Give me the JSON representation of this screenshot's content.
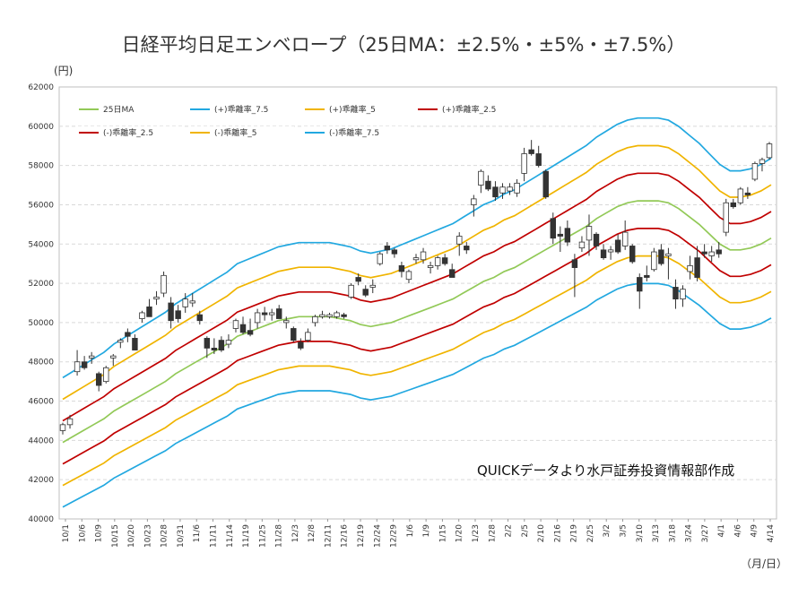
{
  "title": "日経平均日足エンベロープ（25日MA：±2.5%・±5%・±7.5%）",
  "y_unit": "(円)",
  "x_unit": "（月/日）",
  "source_note": "QUICKデータより水戸証券投資情報部作成",
  "colors": {
    "ma": "#92c957",
    "band_2_5": "#c00000",
    "band_5": "#f0b400",
    "band_7_5": "#22a8e0",
    "candle_down": "#333333",
    "candle_up": "#ffffff",
    "grid": "#d9d9d9"
  },
  "chart_data": {
    "type": "line",
    "ylim": [
      40000,
      62000
    ],
    "yticks": [
      "40000",
      "42000",
      "44000",
      "46000",
      "48000",
      "50000",
      "52000",
      "54000",
      "56000",
      "58000",
      "60000",
      "62000"
    ],
    "xticks": [
      "10/1",
      "10/6",
      "10/9",
      "10/15",
      "10/20",
      "10/23",
      "10/28",
      "10/31",
      "11/6",
      "11/11",
      "11/14",
      "11/19",
      "11/25",
      "11/28",
      "12/3",
      "12/8",
      "12/11",
      "12/16",
      "12/19",
      "12/24",
      "12/29",
      "1/6",
      "1/9",
      "1/15",
      "1/20",
      "1/23",
      "1/28",
      "2/2",
      "2/5",
      "2/10",
      "2/16",
      "2/19",
      "2/25",
      "3/2",
      "3/5",
      "3/10",
      "3/13",
      "3/18",
      "3/24",
      "3/27",
      "4/1",
      "4/6",
      "4/9",
      "4/14"
    ],
    "legend": [
      {
        "label": "25日MA",
        "color": "#92c957"
      },
      {
        "label": "(+)乖離率_7.5",
        "color": "#22a8e0"
      },
      {
        "label": "(+)乖離率_5",
        "color": "#f0b400"
      },
      {
        "label": "(+)乖離率_2.5",
        "color": "#c00000"
      },
      {
        "label": "(-)乖離率_2.5",
        "color": "#c00000"
      },
      {
        "label": "(-)乖離率_5",
        "color": "#f0b400"
      },
      {
        "label": "(-)乖離率_7.5",
        "color": "#22a8e0"
      }
    ],
    "ma_25": [
      43900,
      44200,
      44500,
      44800,
      45100,
      45500,
      45800,
      46100,
      46400,
      46700,
      47000,
      47400,
      47700,
      48000,
      48300,
      48600,
      48900,
      49300,
      49500,
      49700,
      49900,
      50100,
      50200,
      50300,
      50300,
      50300,
      50300,
      50200,
      50100,
      49900,
      49800,
      49900,
      50000,
      50200,
      50400,
      50600,
      50800,
      51000,
      51200,
      51500,
      51800,
      52100,
      52300,
      52600,
      52800,
      53100,
      53400,
      53700,
      54000,
      54300,
      54600,
      54900,
      55300,
      55600,
      55900,
      56100,
      56200,
      56200,
      56200,
      56100,
      55800,
      55400,
      55000,
      54500,
      54000,
      53700,
      53700,
      53800,
      54000,
      54300
    ],
    "series_note": "Envelope bands = 25日MA × (1 ± 2.5% / 5% / 7.5%)",
    "candles": [
      {
        "date": "10/1",
        "o": 44500,
        "h": 44900,
        "l": 44300,
        "c": 44800
      },
      {
        "date": "10/3",
        "o": 44800,
        "h": 45300,
        "l": 44600,
        "c": 45100
      },
      {
        "date": "10/6",
        "o": 47500,
        "h": 48600,
        "l": 47300,
        "c": 48000
      },
      {
        "date": "10/8",
        "o": 48000,
        "h": 48300,
        "l": 47600,
        "c": 47700
      },
      {
        "date": "10/9",
        "o": 48200,
        "h": 48500,
        "l": 47900,
        "c": 48300
      },
      {
        "date": "10/14",
        "o": 47400,
        "h": 47500,
        "l": 46500,
        "c": 46800
      },
      {
        "date": "10/15",
        "o": 47000,
        "h": 47800,
        "l": 46900,
        "c": 47700
      },
      {
        "date": "10/16",
        "o": 48200,
        "h": 48400,
        "l": 47800,
        "c": 48300
      },
      {
        "date": "10/20",
        "o": 49000,
        "h": 49200,
        "l": 48700,
        "c": 49100
      },
      {
        "date": "10/22",
        "o": 49500,
        "h": 49700,
        "l": 49000,
        "c": 49300
      },
      {
        "date": "10/23",
        "o": 49200,
        "h": 49400,
        "l": 48700,
        "c": 48600
      },
      {
        "date": "10/27",
        "o": 50200,
        "h": 50600,
        "l": 50000,
        "c": 50500
      },
      {
        "date": "10/28",
        "o": 50800,
        "h": 51200,
        "l": 50400,
        "c": 50300
      },
      {
        "date": "10/30",
        "o": 51200,
        "h": 51600,
        "l": 50900,
        "c": 51300
      },
      {
        "date": "10/31",
        "o": 51500,
        "h": 52600,
        "l": 51300,
        "c": 52400
      },
      {
        "date": "11/5",
        "o": 51000,
        "h": 51300,
        "l": 49700,
        "c": 50100
      },
      {
        "date": "11/6",
        "o": 50600,
        "h": 50900,
        "l": 50000,
        "c": 50200
      },
      {
        "date": "11/10",
        "o": 50800,
        "h": 51500,
        "l": 50500,
        "c": 51200
      },
      {
        "date": "11/12",
        "o": 51000,
        "h": 51500,
        "l": 50800,
        "c": 51100
      },
      {
        "date": "11/14",
        "o": 50400,
        "h": 50600,
        "l": 49900,
        "c": 50100
      },
      {
        "date": "11/18",
        "o": 49200,
        "h": 49300,
        "l": 48200,
        "c": 48700
      },
      {
        "date": "11/19",
        "o": 48700,
        "h": 49200,
        "l": 48400,
        "c": 48600
      },
      {
        "date": "11/21",
        "o": 49100,
        "h": 49300,
        "l": 48500,
        "c": 48600
      },
      {
        "date": "11/25",
        "o": 48900,
        "h": 49400,
        "l": 48700,
        "c": 49100
      },
      {
        "date": "11/27",
        "o": 49700,
        "h": 50200,
        "l": 49500,
        "c": 50100
      },
      {
        "date": "11/28",
        "o": 49900,
        "h": 50300,
        "l": 49400,
        "c": 49500
      },
      {
        "date": "12/2",
        "o": 49600,
        "h": 50200,
        "l": 49300,
        "c": 49400
      },
      {
        "date": "12/3",
        "o": 50000,
        "h": 50700,
        "l": 49700,
        "c": 50500
      },
      {
        "date": "12/5",
        "o": 50500,
        "h": 50800,
        "l": 50100,
        "c": 50400
      },
      {
        "date": "12/8",
        "o": 50400,
        "h": 50700,
        "l": 50100,
        "c": 50500
      },
      {
        "date": "12/10",
        "o": 50700,
        "h": 50900,
        "l": 50200,
        "c": 50200
      },
      {
        "date": "12/11",
        "o": 50000,
        "h": 50300,
        "l": 49700,
        "c": 50100
      },
      {
        "date": "12/15",
        "o": 49700,
        "h": 49800,
        "l": 49000,
        "c": 49100
      },
      {
        "date": "12/16",
        "o": 49000,
        "h": 49200,
        "l": 48600,
        "c": 48700
      },
      {
        "date": "12/18",
        "o": 49100,
        "h": 49700,
        "l": 49000,
        "c": 49500
      },
      {
        "date": "12/19",
        "o": 50000,
        "h": 50400,
        "l": 49800,
        "c": 50300
      },
      {
        "date": "12/23",
        "o": 50300,
        "h": 50600,
        "l": 50200,
        "c": 50400
      },
      {
        "date": "12/25",
        "o": 50300,
        "h": 50500,
        "l": 50200,
        "c": 50400
      },
      {
        "date": "12/29",
        "o": 50300,
        "h": 50600,
        "l": 50200,
        "c": 50500
      },
      {
        "date": "12/30",
        "o": 50400,
        "h": 50500,
        "l": 50200,
        "c": 50300
      },
      {
        "date": "1/5",
        "o": 51300,
        "h": 52000,
        "l": 51200,
        "c": 51900
      },
      {
        "date": "1/6",
        "o": 52300,
        "h": 52500,
        "l": 51900,
        "c": 52100
      },
      {
        "date": "1/8",
        "o": 51700,
        "h": 51900,
        "l": 51300,
        "c": 51400
      },
      {
        "date": "1/9",
        "o": 51800,
        "h": 52200,
        "l": 51500,
        "c": 51900
      },
      {
        "date": "1/13",
        "o": 53000,
        "h": 53600,
        "l": 52900,
        "c": 53500
      },
      {
        "date": "1/15",
        "o": 53900,
        "h": 54100,
        "l": 53500,
        "c": 53700
      },
      {
        "date": "1/16",
        "o": 53700,
        "h": 53800,
        "l": 53300,
        "c": 53500
      },
      {
        "date": "1/19",
        "o": 52900,
        "h": 53100,
        "l": 52300,
        "c": 52600
      },
      {
        "date": "1/20",
        "o": 52200,
        "h": 52700,
        "l": 52000,
        "c": 52600
      },
      {
        "date": "1/22",
        "o": 53200,
        "h": 53500,
        "l": 53000,
        "c": 53300
      },
      {
        "date": "1/23",
        "o": 53200,
        "h": 53800,
        "l": 53000,
        "c": 53600
      },
      {
        "date": "1/27",
        "o": 52800,
        "h": 53100,
        "l": 52500,
        "c": 52900
      },
      {
        "date": "1/28",
        "o": 52900,
        "h": 53400,
        "l": 52700,
        "c": 53300
      },
      {
        "date": "1/30",
        "o": 53300,
        "h": 53500,
        "l": 52900,
        "c": 53000
      },
      {
        "date": "2/2",
        "o": 52700,
        "h": 53000,
        "l": 52300,
        "c": 52300
      },
      {
        "date": "2/4",
        "o": 54000,
        "h": 54600,
        "l": 53400,
        "c": 54400
      },
      {
        "date": "2/5",
        "o": 53900,
        "h": 54100,
        "l": 53500,
        "c": 53700
      },
      {
        "date": "2/9",
        "o": 56000,
        "h": 56500,
        "l": 55400,
        "c": 56300
      },
      {
        "date": "2/10",
        "o": 57000,
        "h": 57800,
        "l": 56600,
        "c": 57700
      },
      {
        "date": "2/12",
        "o": 57200,
        "h": 57500,
        "l": 56700,
        "c": 56800
      },
      {
        "date": "2/16",
        "o": 56900,
        "h": 57200,
        "l": 56200,
        "c": 56400
      },
      {
        "date": "2/17",
        "o": 56600,
        "h": 57100,
        "l": 56300,
        "c": 56900
      },
      {
        "date": "2/19",
        "o": 56700,
        "h": 57100,
        "l": 56500,
        "c": 56900
      },
      {
        "date": "2/20",
        "o": 56600,
        "h": 57300,
        "l": 56400,
        "c": 57100
      },
      {
        "date": "2/24",
        "o": 57600,
        "h": 58900,
        "l": 57200,
        "c": 58600
      },
      {
        "date": "2/26",
        "o": 58800,
        "h": 59300,
        "l": 58500,
        "c": 58600
      },
      {
        "date": "2/27",
        "o": 58600,
        "h": 59000,
        "l": 57900,
        "c": 58000
      },
      {
        "date": "3/2",
        "o": 57700,
        "h": 57800,
        "l": 56300,
        "c": 56400
      },
      {
        "date": "3/3",
        "o": 55300,
        "h": 55600,
        "l": 54000,
        "c": 54300
      },
      {
        "date": "3/4",
        "o": 54500,
        "h": 54900,
        "l": 53600,
        "c": 54400
      },
      {
        "date": "3/5",
        "o": 54800,
        "h": 55200,
        "l": 53900,
        "c": 54100
      },
      {
        "date": "3/9",
        "o": 53200,
        "h": 53500,
        "l": 51300,
        "c": 52800
      },
      {
        "date": "3/10",
        "o": 53800,
        "h": 54400,
        "l": 53600,
        "c": 54100
      },
      {
        "date": "3/11",
        "o": 54200,
        "h": 55500,
        "l": 53400,
        "c": 54900
      },
      {
        "date": "3/12",
        "o": 54500,
        "h": 54600,
        "l": 53700,
        "c": 53900
      },
      {
        "date": "3/13",
        "o": 53700,
        "h": 54000,
        "l": 53200,
        "c": 53300
      },
      {
        "date": "3/16",
        "o": 53600,
        "h": 53900,
        "l": 53200,
        "c": 53700
      },
      {
        "date": "3/17",
        "o": 54200,
        "h": 54500,
        "l": 53500,
        "c": 53600
      },
      {
        "date": "3/18",
        "o": 53900,
        "h": 55200,
        "l": 53700,
        "c": 54600
      },
      {
        "date": "3/19",
        "o": 53900,
        "h": 54000,
        "l": 53000,
        "c": 53100
      },
      {
        "date": "3/23",
        "o": 52300,
        "h": 52500,
        "l": 50700,
        "c": 51600
      },
      {
        "date": "3/24",
        "o": 52400,
        "h": 52900,
        "l": 52100,
        "c": 52300
      },
      {
        "date": "3/25",
        "o": 52700,
        "h": 53800,
        "l": 52600,
        "c": 53600
      },
      {
        "date": "3/26",
        "o": 53700,
        "h": 54000,
        "l": 52900,
        "c": 53000
      },
      {
        "date": "3/27",
        "o": 53400,
        "h": 53800,
        "l": 52200,
        "c": 53500
      },
      {
        "date": "3/30",
        "o": 51800,
        "h": 52200,
        "l": 50700,
        "c": 51200
      },
      {
        "date": "3/31",
        "o": 51200,
        "h": 51900,
        "l": 50800,
        "c": 51700
      },
      {
        "date": "4/1",
        "o": 52600,
        "h": 53400,
        "l": 52200,
        "c": 52900
      },
      {
        "date": "4/2",
        "o": 53300,
        "h": 53900,
        "l": 52100,
        "c": 52300
      },
      {
        "date": "4/3",
        "o": 53600,
        "h": 54000,
        "l": 53300,
        "c": 53500
      },
      {
        "date": "4/6",
        "o": 53400,
        "h": 53900,
        "l": 53100,
        "c": 53600
      },
      {
        "date": "4/7",
        "o": 53700,
        "h": 54100,
        "l": 53300,
        "c": 53500
      },
      {
        "date": "4/8",
        "o": 54600,
        "h": 56300,
        "l": 54400,
        "c": 56100
      },
      {
        "date": "4/9",
        "o": 56100,
        "h": 56300,
        "l": 55800,
        "c": 55900
      },
      {
        "date": "4/10",
        "o": 56100,
        "h": 56900,
        "l": 56000,
        "c": 56800
      },
      {
        "date": "4/13",
        "o": 56600,
        "h": 56900,
        "l": 56300,
        "c": 56500
      },
      {
        "date": "4/14",
        "o": 57300,
        "h": 58200,
        "l": 57200,
        "c": 58100
      },
      {
        "date": "4/15",
        "o": 58100,
        "h": 58400,
        "l": 57700,
        "c": 58300
      },
      {
        "date": "4/16",
        "o": 58400,
        "h": 59200,
        "l": 58300,
        "c": 59100
      }
    ]
  }
}
